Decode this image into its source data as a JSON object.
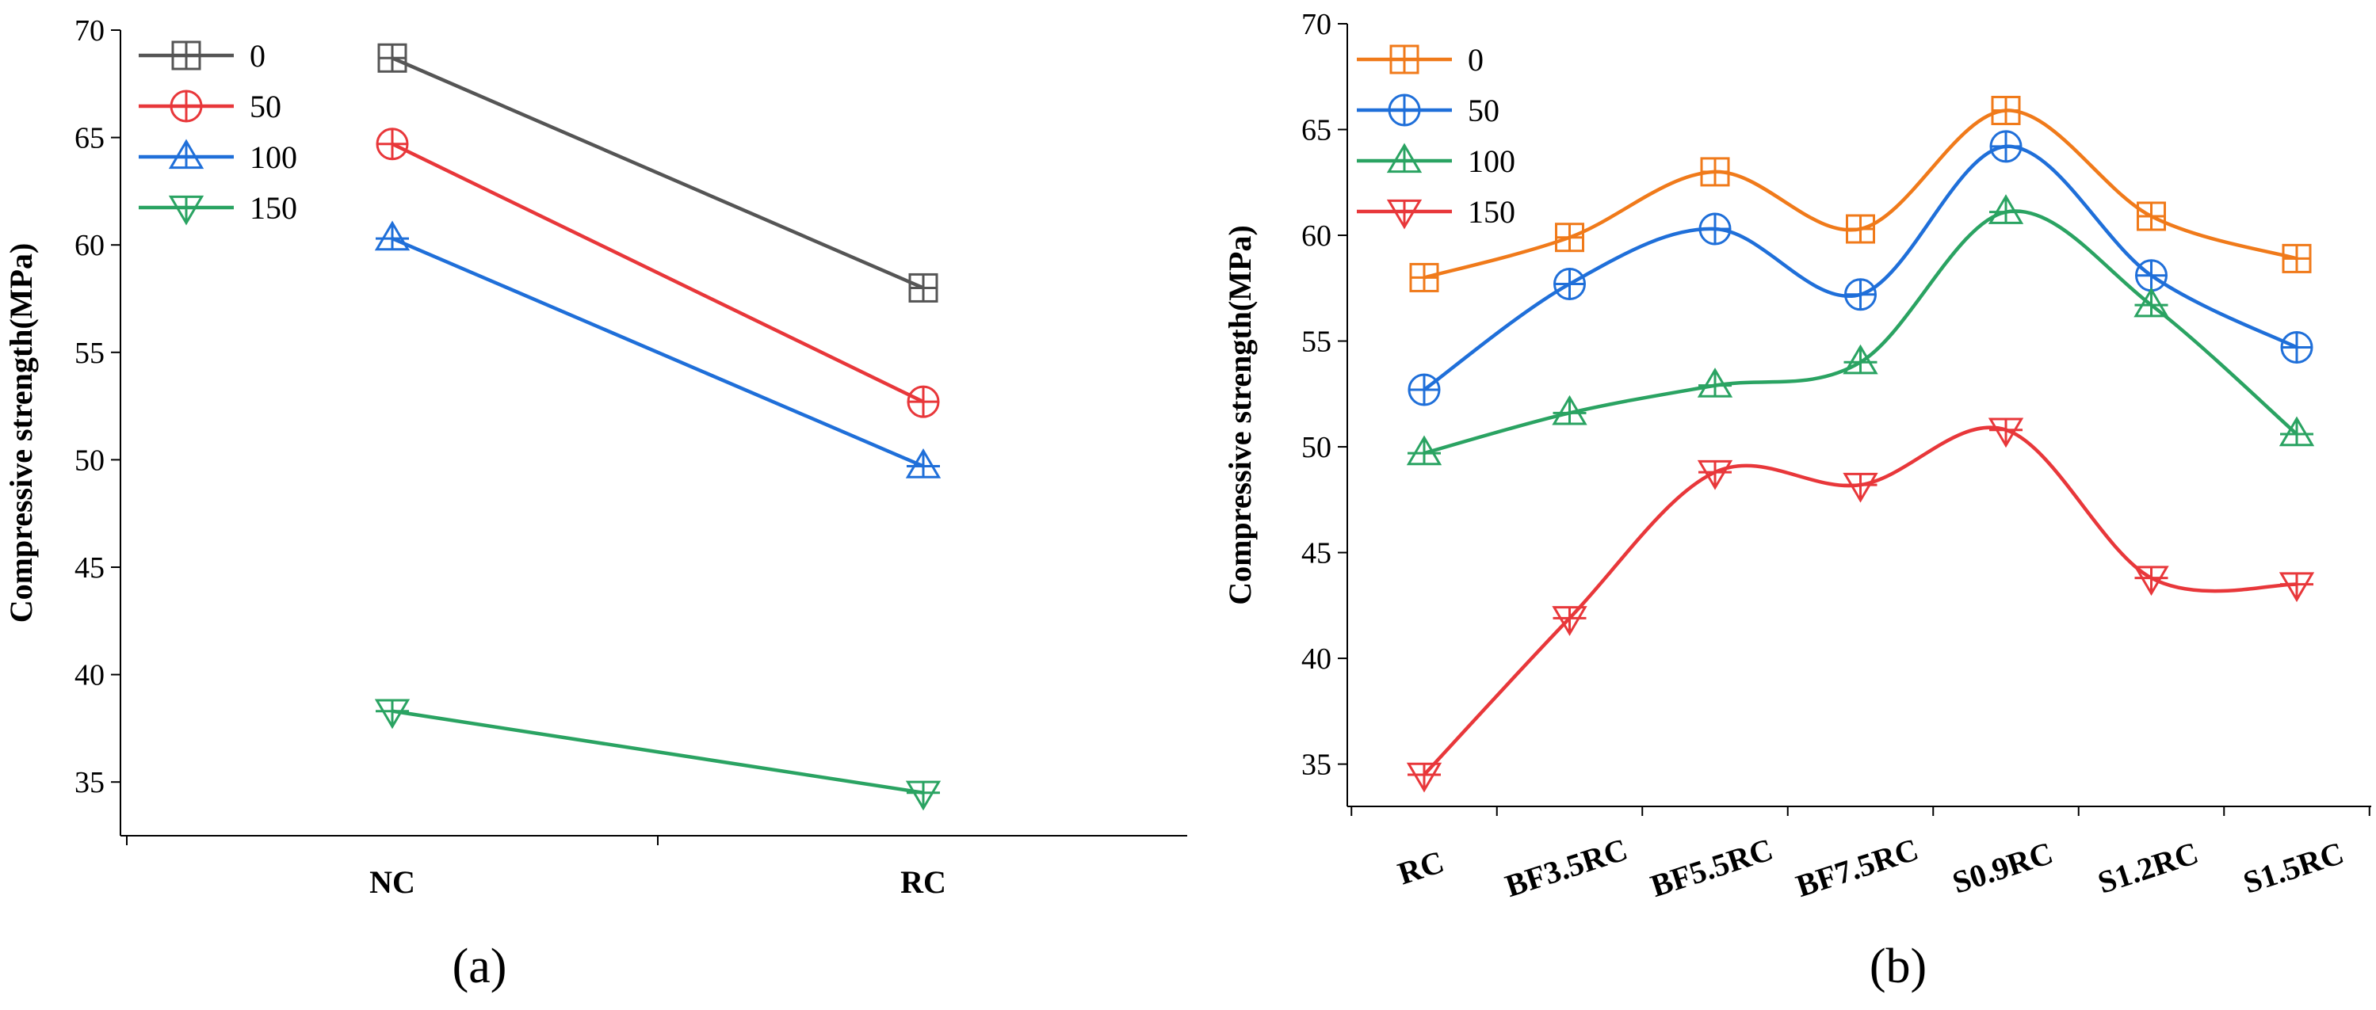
{
  "chart_data": [
    {
      "type": "line",
      "panel_label": "(a)",
      "ylabel": "Compressive strength(MPa)",
      "xlabel": "",
      "ylim": [
        32.5,
        70
      ],
      "yticks": [
        35,
        40,
        45,
        50,
        55,
        60,
        65,
        70
      ],
      "categories": [
        "NC",
        "RC"
      ],
      "smooth": false,
      "legend_position": "top-left",
      "series": [
        {
          "name": "0",
          "color": "#555555",
          "marker": "square",
          "values": [
            68.7,
            58.0
          ]
        },
        {
          "name": "50",
          "color": "#e8373a",
          "marker": "circle",
          "values": [
            64.7,
            52.7
          ]
        },
        {
          "name": "100",
          "color": "#1f6fd9",
          "marker": "triangle-up",
          "values": [
            60.3,
            49.7
          ]
        },
        {
          "name": "150",
          "color": "#2aa362",
          "marker": "triangle-down",
          "values": [
            38.3,
            34.5
          ]
        }
      ]
    },
    {
      "type": "line",
      "panel_label": "(b)",
      "ylabel": "Compressive strength(MPa)",
      "xlabel": "",
      "ylim": [
        33,
        70
      ],
      "yticks": [
        35,
        40,
        45,
        50,
        55,
        60,
        65,
        70
      ],
      "categories": [
        "RC",
        "BF3.5RC",
        "BF5.5RC",
        "BF7.5RC",
        "S0.9RC",
        "S1.2RC",
        "S1.5RC"
      ],
      "smooth": true,
      "legend_position": "top-left",
      "series": [
        {
          "name": "0",
          "color": "#f07a1a",
          "marker": "square",
          "values": [
            58.0,
            59.9,
            63.0,
            60.3,
            65.9,
            60.9,
            58.9
          ]
        },
        {
          "name": "50",
          "color": "#1f6fd9",
          "marker": "circle",
          "values": [
            52.7,
            57.7,
            60.3,
            57.2,
            64.2,
            58.1,
            54.7
          ]
        },
        {
          "name": "100",
          "color": "#2aa362",
          "marker": "triangle-up",
          "values": [
            49.7,
            51.6,
            52.9,
            54.0,
            61.1,
            56.7,
            50.6
          ]
        },
        {
          "name": "150",
          "color": "#e8373a",
          "marker": "triangle-down",
          "values": [
            34.5,
            41.9,
            48.8,
            48.2,
            50.8,
            43.8,
            43.5
          ]
        }
      ]
    }
  ]
}
